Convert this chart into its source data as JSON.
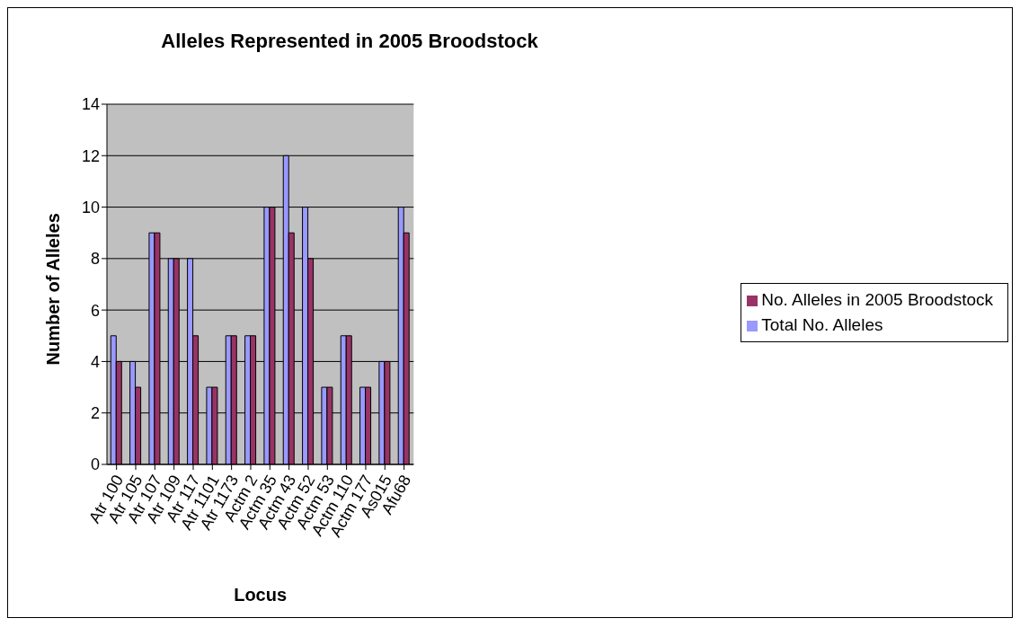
{
  "chart_data": {
    "type": "bar",
    "title": "Alleles Represented in 2005 Broodstock",
    "xlabel": "Locus",
    "ylabel": "Number of Alleles",
    "categories": [
      "Atr 100",
      "Atr 105",
      "Atr 107",
      "Atr 109",
      "Atr 117",
      "Atr 1101",
      "Atr 1173",
      "Actm 2",
      "Actm 35",
      "Actm 43",
      "Actm 52",
      "Actm 53",
      "Actm 110",
      "Actm 177",
      "As015",
      "Afu68"
    ],
    "series": [
      {
        "name": "Total No. Alleles",
        "color": "#9999ff",
        "values": [
          5,
          4,
          9,
          8,
          8,
          3,
          5,
          5,
          10,
          12,
          10,
          3,
          5,
          3,
          4,
          10
        ]
      },
      {
        "name": "No. Alleles in 2005 Broodstock",
        "color": "#993366",
        "values": [
          4,
          3,
          9,
          8,
          5,
          3,
          5,
          5,
          10,
          9,
          8,
          3,
          5,
          3,
          4,
          9
        ]
      }
    ],
    "ylim": [
      0,
      14
    ],
    "yticks": [
      0,
      2,
      4,
      6,
      8,
      10,
      12,
      14
    ],
    "grid": "y",
    "legend": "right"
  }
}
